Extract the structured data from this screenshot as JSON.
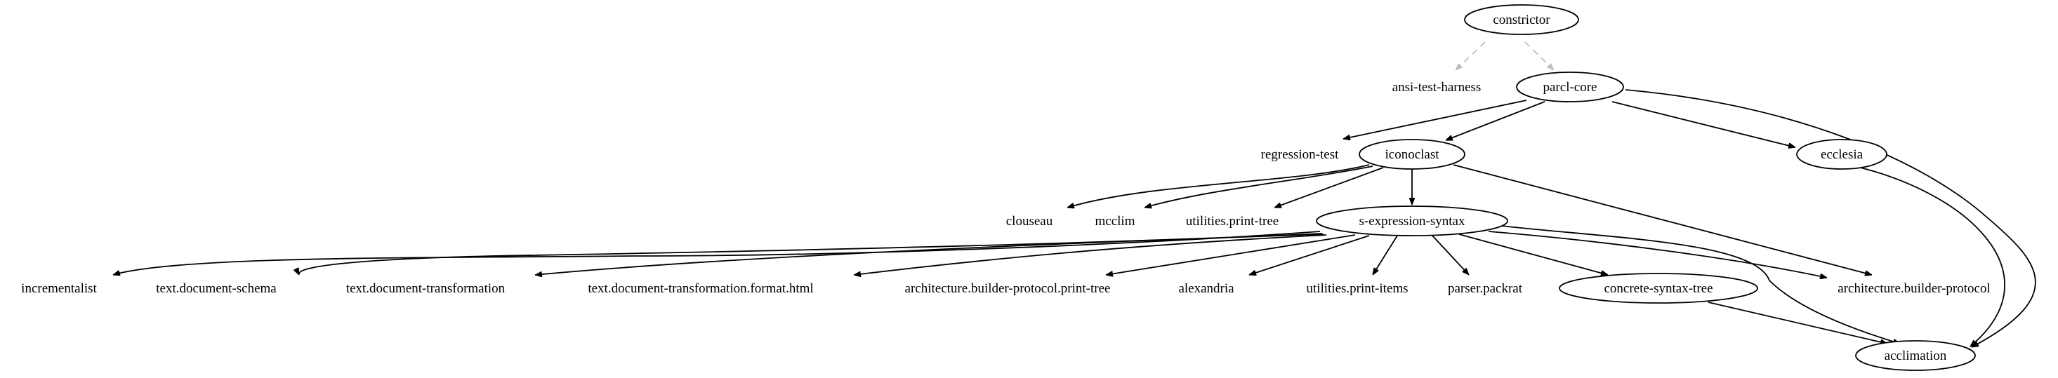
{
  "nodes": [
    {
      "id": "constrictor",
      "label": "constrictor",
      "shape": "ellipse"
    },
    {
      "id": "ansi-test-harness",
      "label": "ansi-test-harness",
      "shape": "none"
    },
    {
      "id": "parcl-core",
      "label": "parcl-core",
      "shape": "ellipse"
    },
    {
      "id": "regression-test",
      "label": "regression-test",
      "shape": "none"
    },
    {
      "id": "iconoclast",
      "label": "iconoclast",
      "shape": "ellipse"
    },
    {
      "id": "ecclesia",
      "label": "ecclesia",
      "shape": "ellipse"
    },
    {
      "id": "clouseau",
      "label": "clouseau",
      "shape": "none"
    },
    {
      "id": "mcclim",
      "label": "mcclim",
      "shape": "none"
    },
    {
      "id": "utilities.print-tree",
      "label": "utilities.print-tree",
      "shape": "none"
    },
    {
      "id": "s-expression-syntax",
      "label": "s-expression-syntax",
      "shape": "ellipse"
    },
    {
      "id": "incrementalist",
      "label": "incrementalist",
      "shape": "none"
    },
    {
      "id": "text.document-schema",
      "label": "text.document-schema",
      "shape": "none"
    },
    {
      "id": "text.document-transformation",
      "label": "text.document-transformation",
      "shape": "none"
    },
    {
      "id": "text.document-transformation.format.html",
      "label": "text.document-transformation.format.html",
      "shape": "none"
    },
    {
      "id": "architecture.builder-protocol.print-tree",
      "label": "architecture.builder-protocol.print-tree",
      "shape": "none"
    },
    {
      "id": "alexandria",
      "label": "alexandria",
      "shape": "none"
    },
    {
      "id": "utilities.print-items",
      "label": "utilities.print-items",
      "shape": "none"
    },
    {
      "id": "parser.packrat",
      "label": "parser.packrat",
      "shape": "none"
    },
    {
      "id": "concrete-syntax-tree",
      "label": "concrete-syntax-tree",
      "shape": "ellipse"
    },
    {
      "id": "architecture.builder-protocol",
      "label": "architecture.builder-protocol",
      "shape": "none"
    },
    {
      "id": "acclimation",
      "label": "acclimation",
      "shape": "ellipse"
    }
  ],
  "edges": [
    {
      "from": "constrictor",
      "to": "ansi-test-harness",
      "style": "dashed"
    },
    {
      "from": "constrictor",
      "to": "parcl-core",
      "style": "dashed"
    },
    {
      "from": "parcl-core",
      "to": "regression-test",
      "style": "solid"
    },
    {
      "from": "parcl-core",
      "to": "iconoclast",
      "style": "solid"
    },
    {
      "from": "parcl-core",
      "to": "ecclesia",
      "style": "solid"
    },
    {
      "from": "parcl-core",
      "to": "acclimation",
      "style": "solid"
    },
    {
      "from": "iconoclast",
      "to": "clouseau",
      "style": "solid"
    },
    {
      "from": "iconoclast",
      "to": "mcclim",
      "style": "solid"
    },
    {
      "from": "iconoclast",
      "to": "utilities.print-tree",
      "style": "solid"
    },
    {
      "from": "iconoclast",
      "to": "s-expression-syntax",
      "style": "solid"
    },
    {
      "from": "iconoclast",
      "to": "architecture.builder-protocol",
      "style": "solid"
    },
    {
      "from": "ecclesia",
      "to": "acclimation",
      "style": "solid"
    },
    {
      "from": "s-expression-syntax",
      "to": "incrementalist",
      "style": "solid"
    },
    {
      "from": "s-expression-syntax",
      "to": "text.document-schema",
      "style": "solid"
    },
    {
      "from": "s-expression-syntax",
      "to": "text.document-transformation",
      "style": "solid"
    },
    {
      "from": "s-expression-syntax",
      "to": "text.document-transformation.format.html",
      "style": "solid"
    },
    {
      "from": "s-expression-syntax",
      "to": "architecture.builder-protocol.print-tree",
      "style": "solid"
    },
    {
      "from": "s-expression-syntax",
      "to": "alexandria",
      "style": "solid"
    },
    {
      "from": "s-expression-syntax",
      "to": "utilities.print-items",
      "style": "solid"
    },
    {
      "from": "s-expression-syntax",
      "to": "parser.packrat",
      "style": "solid"
    },
    {
      "from": "s-expression-syntax",
      "to": "concrete-syntax-tree",
      "style": "solid"
    },
    {
      "from": "s-expression-syntax",
      "to": "architecture.builder-protocol",
      "style": "solid"
    },
    {
      "from": "s-expression-syntax",
      "to": "acclimation",
      "style": "solid"
    },
    {
      "from": "concrete-syntax-tree",
      "to": "acclimation",
      "style": "solid"
    }
  ]
}
